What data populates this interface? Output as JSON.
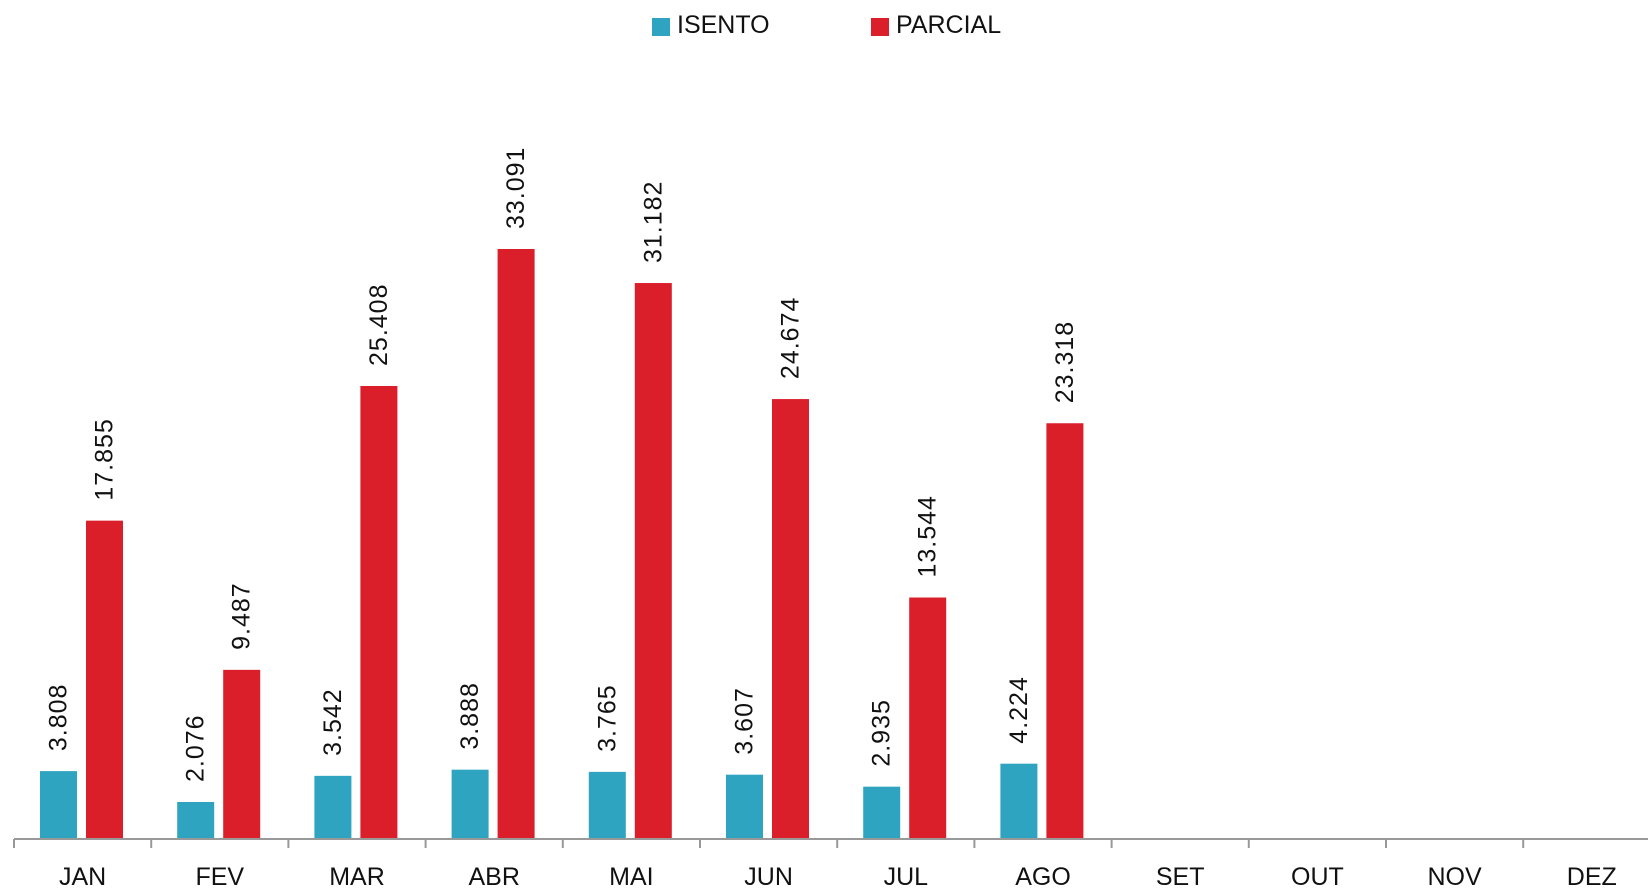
{
  "chart_data": {
    "type": "bar",
    "categories": [
      "JAN",
      "FEV",
      "MAR",
      "ABR",
      "MAI",
      "JUN",
      "JUL",
      "AGO",
      "SET",
      "OUT",
      "NOV",
      "DEZ"
    ],
    "series": [
      {
        "name": "ISENTO",
        "color": "#2fa4c1",
        "values": [
          3808,
          2076,
          3542,
          3888,
          3765,
          3607,
          2935,
          4224,
          null,
          null,
          null,
          null
        ],
        "labels": [
          "3.808",
          "2.076",
          "3.542",
          "3.888",
          "3.765",
          "3.607",
          "2.935",
          "4.224",
          "",
          "",
          "",
          ""
        ]
      },
      {
        "name": "PARCIAL",
        "color": "#da1f2b",
        "values": [
          17855,
          9487,
          25408,
          33091,
          31182,
          24674,
          13544,
          23318,
          null,
          null,
          null,
          null
        ],
        "labels": [
          "17.855",
          "9.487",
          "25.408",
          "33.091",
          "31.182",
          "24.674",
          "13.544",
          "23.318",
          "",
          "",
          "",
          ""
        ]
      }
    ],
    "title": "",
    "xlabel": "",
    "ylabel": "",
    "ylim": [
      0,
      37000
    ],
    "grid": false,
    "legend": "top-center",
    "axis_color": "#999999"
  }
}
